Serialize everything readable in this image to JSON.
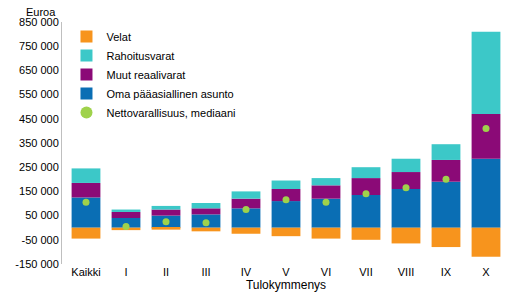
{
  "chart_data": {
    "type": "bar",
    "stacked": true,
    "y_label": "Euroa",
    "x_label": "Tulokymmenys",
    "categories": [
      "Kaikki",
      "I",
      "II",
      "III",
      "IV",
      "V",
      "VI",
      "VII",
      "VIII",
      "IX",
      "X"
    ],
    "series": [
      {
        "name": "Oma pääasiallinen asunto",
        "color": "#0a6eb4",
        "values": [
          125000,
          40000,
          50000,
          55000,
          80000,
          110000,
          120000,
          135000,
          160000,
          190000,
          285000
        ]
      },
      {
        "name": "Muut reaalivarat",
        "color": "#8b0a77",
        "values": [
          60000,
          25000,
          25000,
          25000,
          40000,
          50000,
          55000,
          70000,
          70000,
          90000,
          185000
        ]
      },
      {
        "name": "Rahoitusvarat",
        "color": "#3cc8c8",
        "values": [
          60000,
          10000,
          15000,
          22000,
          30000,
          35000,
          30000,
          45000,
          55000,
          65000,
          340000
        ]
      },
      {
        "name": "Velat",
        "color": "#f7941d",
        "values": [
          -45000,
          -10000,
          -8000,
          -15000,
          -25000,
          -35000,
          -45000,
          -50000,
          -65000,
          -80000,
          -120000
        ]
      },
      {
        "name": "Nettovarallisuus, mediaani",
        "color": "#9fd24b",
        "type": "scatter",
        "marker": "circle",
        "values": [
          105000,
          5000,
          25000,
          20000,
          75000,
          115000,
          105000,
          140000,
          165000,
          200000,
          410000
        ]
      }
    ],
    "ylim": [
      -150000,
      850000
    ],
    "yticks": [
      {
        "value": -150000,
        "label": "-150 000"
      },
      {
        "value": -50000,
        "label": "-50 000"
      },
      {
        "value": 50000,
        "label": "50 000"
      },
      {
        "value": 150000,
        "label": "150 000"
      },
      {
        "value": 250000,
        "label": "250 000"
      },
      {
        "value": 350000,
        "label": "350 000"
      },
      {
        "value": 450000,
        "label": "450 000"
      },
      {
        "value": 550000,
        "label": "550 000"
      },
      {
        "value": 650000,
        "label": "650 000"
      },
      {
        "value": 750000,
        "label": "750 000"
      },
      {
        "value": 850000,
        "label": "850 000"
      }
    ],
    "grid": false,
    "legend": "top-left"
  }
}
